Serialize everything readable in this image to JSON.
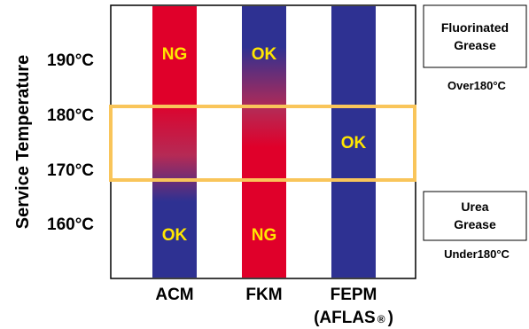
{
  "axis_title": "Service Temperature",
  "temperature_ticks": [
    {
      "label": "190°C",
      "value": 190
    },
    {
      "label": "180°C",
      "value": 180
    },
    {
      "label": "170°C",
      "value": 170
    },
    {
      "label": "160°C",
      "value": 160
    }
  ],
  "materials": [
    {
      "name": "ACM",
      "sublabel": "",
      "upper_status": "NG",
      "lower_status": "OK",
      "transition": "gradient"
    },
    {
      "name": "FKM",
      "sublabel": "",
      "upper_status": "OK",
      "lower_status": "NG",
      "transition": "gradient"
    },
    {
      "name": "FEPM",
      "sublabel": "(AFLAS",
      "sublabel_mark": "®",
      "sublabel_close": ")",
      "status": "OK"
    }
  ],
  "greases": [
    {
      "name_line1": "Fluorinated",
      "name_line2": "Grease",
      "condition": "Over180°C"
    },
    {
      "name_line1": "Urea",
      "name_line2": "Grease",
      "condition": "Under180°C"
    }
  ],
  "highlight_band": {
    "from_value": 168,
    "to_value": 182
  },
  "colors": {
    "ng_red": "#e0002a",
    "ok_blue": "#2e3192",
    "status_text": "#ffe600",
    "highlight": "#f9c55a",
    "frame": "#000000"
  }
}
